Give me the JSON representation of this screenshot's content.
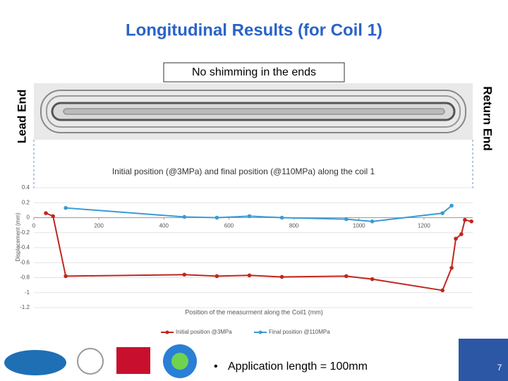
{
  "slide": {
    "title": "Longitudinal Results (for Coil 1)",
    "box_label": "No shimming in the ends",
    "left_label": "Lead End",
    "right_label": "Return End",
    "bullet": "Application length = 100mm",
    "page_number": "7"
  },
  "chart_data": {
    "type": "line",
    "title": "Initial position (@3MPa) and final position (@110MPa) along the coil 1",
    "x_label": "Position of the measurment along the Coil1 (mm)",
    "y_label": "Displacement (mm)",
    "xlim": [
      0,
      1350
    ],
    "xticks": [
      0,
      200,
      400,
      600,
      800,
      1000,
      1200
    ],
    "ylim": [
      -1.2,
      0.4
    ],
    "yticks": [
      -1.2,
      -1,
      -0.8,
      -0.6,
      -0.4,
      -0.2,
      0,
      0.2,
      0.4
    ],
    "grid": true,
    "legend": "bottom",
    "series": [
      {
        "name": "Initial position @3MPa",
        "color": "#c0271f",
        "x": [
          37,
          59,
          98,
          463,
          563,
          663,
          763,
          961,
          1041,
          1257,
          1285,
          1298,
          1315,
          1326,
          1346
        ],
        "values": [
          0.06,
          0.02,
          -0.78,
          -0.76,
          -0.78,
          -0.77,
          -0.79,
          -0.78,
          -0.82,
          -0.97,
          -0.67,
          -0.28,
          -0.22,
          -0.03,
          -0.05
        ]
      },
      {
        "name": "Final position @110MPa",
        "color": "#3a9bd5",
        "x": [
          98,
          463,
          563,
          663,
          763,
          961,
          1041,
          1257,
          1285
        ],
        "values": [
          0.13,
          0.01,
          0,
          0.02,
          0,
          -0.02,
          -0.05,
          0.06,
          0.16
        ]
      }
    ]
  }
}
